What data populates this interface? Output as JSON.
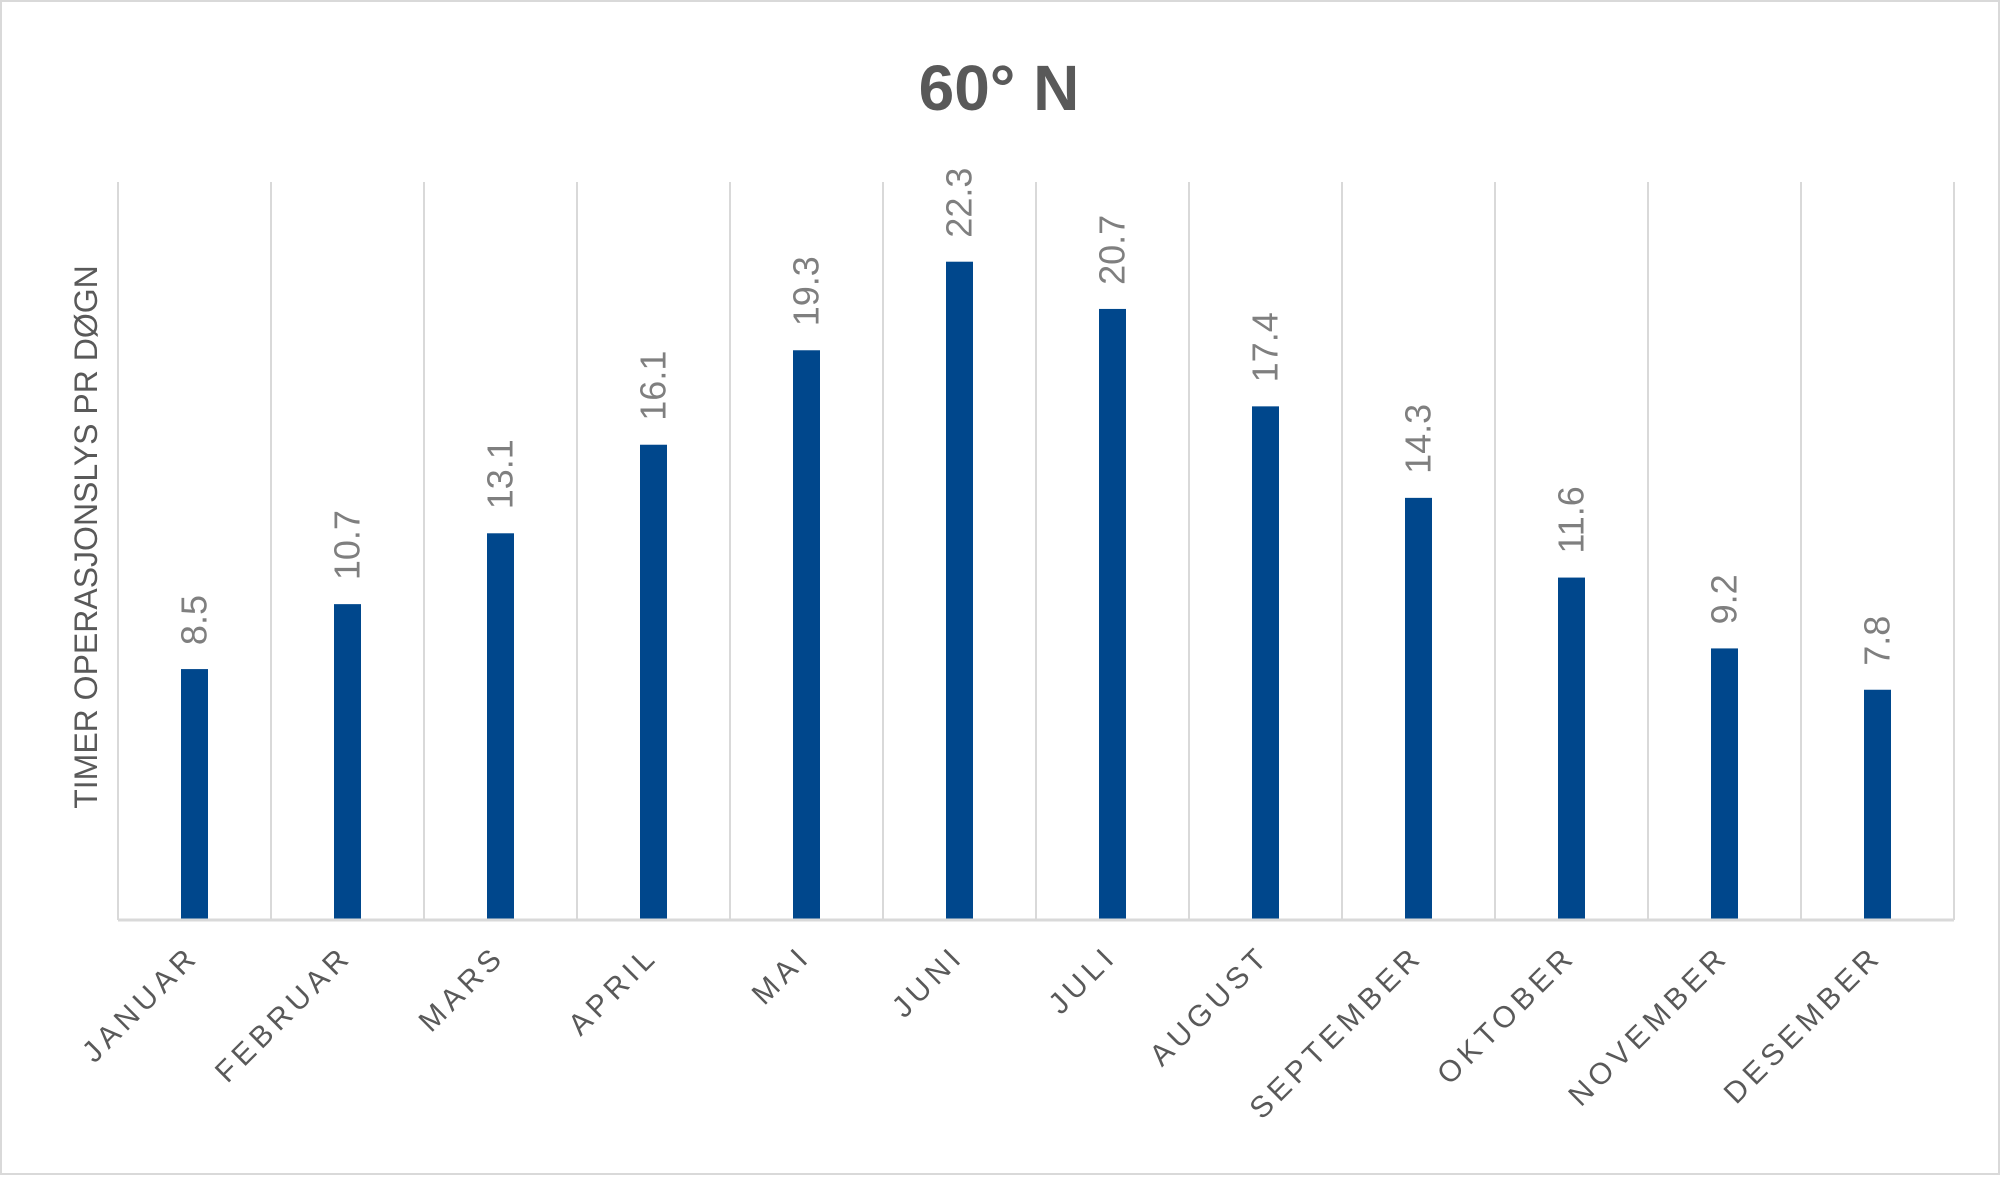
{
  "chart_data": {
    "type": "bar",
    "title": "60° N",
    "ylabel": "TIMER OPERASJONSLYS PR DØGN",
    "xlabel": "",
    "categories": [
      "JANUAR",
      "FEBRUAR",
      "MARS",
      "APRIL",
      "MAI",
      "JUNI",
      "JULI",
      "AUGUST",
      "SEPTEMBER",
      "OKTOBER",
      "NOVEMBER",
      "DESEMBER"
    ],
    "values": [
      8.5,
      10.7,
      13.1,
      16.1,
      19.3,
      22.3,
      20.7,
      17.4,
      14.3,
      11.6,
      9.2,
      7.8
    ],
    "value_labels": [
      "8.5",
      "10.7",
      "13.1",
      "16.1",
      "19.3",
      "22.3",
      "20.7",
      "17.4",
      "14.3",
      "11.6",
      "9.2",
      "7.8"
    ],
    "ylim": [
      0,
      25
    ],
    "grid": "vertical",
    "legend": "none",
    "colors": {
      "bar": "#00478c",
      "grid": "#d9d9d9",
      "text": "#595959",
      "data_label": "#7f7f7f"
    }
  }
}
